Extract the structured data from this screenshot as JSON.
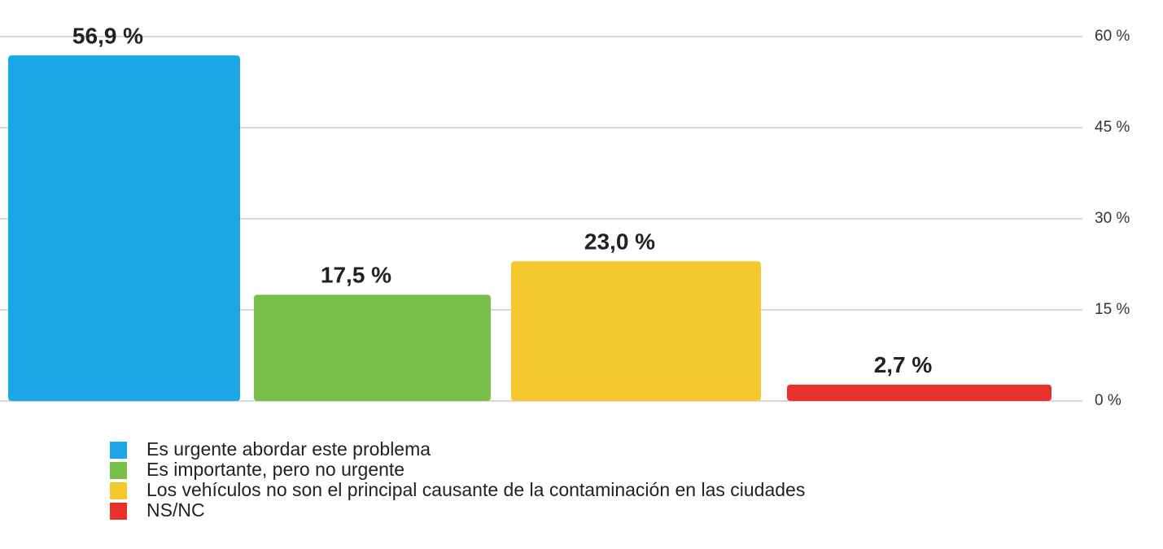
{
  "chart_data": {
    "type": "bar",
    "series": [
      {
        "name": "Es urgente abordar este problema",
        "color": "#1ba6e6",
        "values": [
          56.9
        ],
        "value_labels": [
          "56,9 %"
        ]
      },
      {
        "name": "Es importante, pero no urgente",
        "color": "#78c04a",
        "values": [
          17.5
        ],
        "value_labels": [
          "17,5 %"
        ]
      },
      {
        "name": "Los vehículos no son el principal causante de la contaminación en las ciudades",
        "color": "#f5c92e",
        "values": [
          23.0
        ],
        "value_labels": [
          "23,0 %"
        ]
      },
      {
        "name": "NS/NC",
        "color": "#e8302c",
        "values": [
          2.7
        ],
        "value_labels": [
          "2,7 %"
        ]
      }
    ],
    "ylim": [
      0,
      60
    ],
    "yticks": [
      {
        "value": 0,
        "label": "0 %"
      },
      {
        "value": 15,
        "label": "15 %"
      },
      {
        "value": 30,
        "label": "30 %"
      },
      {
        "value": 45,
        "label": "45 %"
      },
      {
        "value": 60,
        "label": "60 %"
      }
    ],
    "grid": true
  }
}
